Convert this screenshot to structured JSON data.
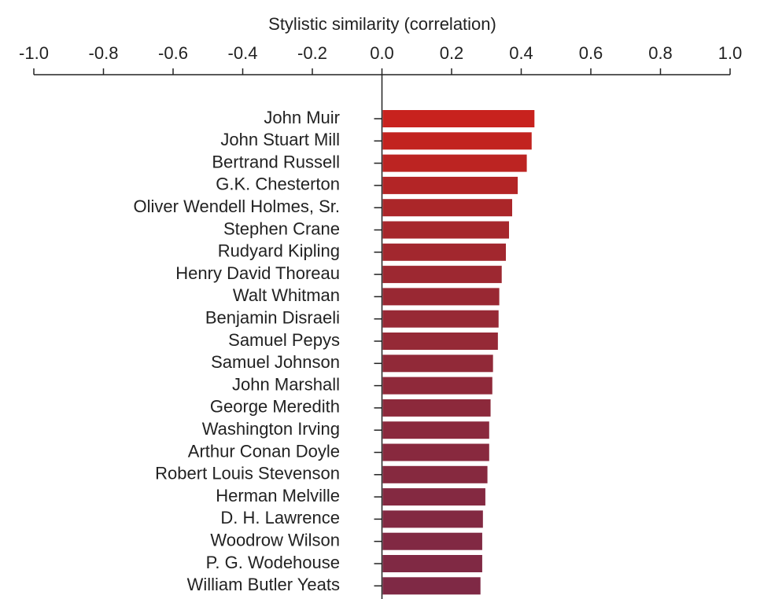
{
  "chart_data": {
    "type": "barh",
    "xlabel": "Stylistic similarity (correlation)",
    "categories": [
      "John Muir",
      "John Stuart Mill",
      "Bertrand Russell",
      "G.K. Chesterton",
      "Oliver Wendell Holmes, Sr.",
      "Stephen Crane",
      "Rudyard Kipling",
      "Henry David Thoreau",
      "Walt Whitman",
      "Benjamin Disraeli",
      "Samuel Pepys",
      "Samuel Johnson",
      "John Marshall",
      "George Meredith",
      "Washington Irving",
      "Arthur Conan Doyle",
      "Robert Louis Stevenson",
      "Herman Melville",
      "D. H. Lawrence",
      "Woodrow Wilson",
      "P. G. Wodehouse",
      "William Butler Yeats"
    ],
    "values": [
      0.438,
      0.43,
      0.416,
      0.39,
      0.374,
      0.365,
      0.356,
      0.344,
      0.337,
      0.335,
      0.333,
      0.319,
      0.317,
      0.312,
      0.308,
      0.308,
      0.303,
      0.297,
      0.29,
      0.288,
      0.288,
      0.283
    ],
    "colors": [
      "#c8221e",
      "#c2231f",
      "#bc2422",
      "#b32526",
      "#ab2629",
      "#a6272c",
      "#a2272e",
      "#9d2831",
      "#992833",
      "#972935",
      "#952936",
      "#912938",
      "#8f293a",
      "#8c293b",
      "#8a293d",
      "#88293e",
      "#86293f",
      "#842941",
      "#822942",
      "#812943",
      "#802944",
      "#7f2945"
    ],
    "xlim": [
      -1.0,
      1.0
    ],
    "xticks": [
      {
        "value": -1.0,
        "label": "-1.0"
      },
      {
        "value": -0.8,
        "label": "-0.8"
      },
      {
        "value": -0.6,
        "label": "-0.6"
      },
      {
        "value": -0.4,
        "label": "-0.4"
      },
      {
        "value": -0.2,
        "label": "-0.2"
      },
      {
        "value": 0,
        "label": "0.0"
      },
      {
        "value": 0.2,
        "label": "0.2"
      },
      {
        "value": 0.4,
        "label": "0.4"
      },
      {
        "value": 0.6,
        "label": "0.6"
      },
      {
        "value": 0.8,
        "label": "0.8"
      },
      {
        "value": 1.0,
        "label": "1.0"
      }
    ],
    "grid": false
  }
}
